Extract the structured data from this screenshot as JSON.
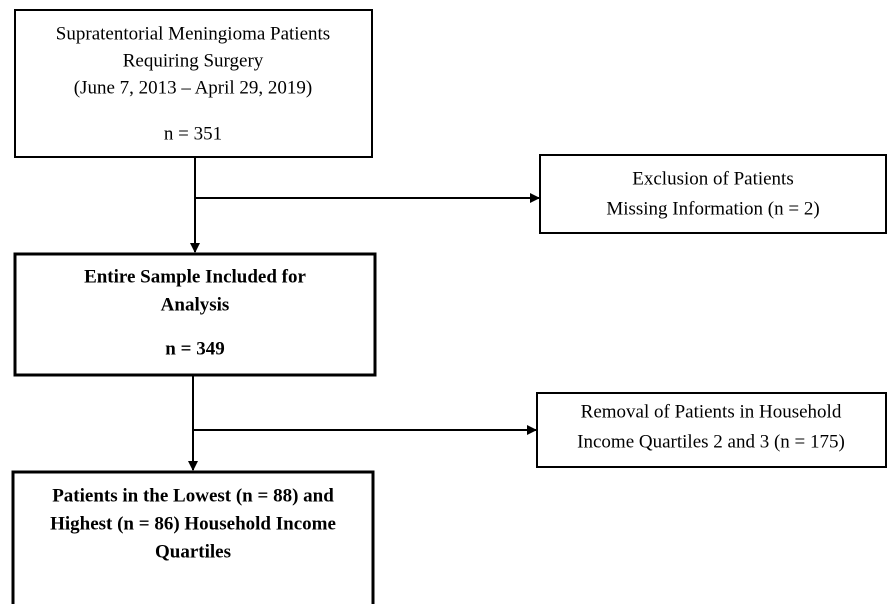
{
  "nodes": [
    {
      "lines": [
        "Supratentorial Meningioma Patients",
        "Requiring Surgery",
        "(June 7, 2013 – April 29, 2019)",
        "n = 351"
      ]
    },
    {
      "lines": [
        "Exclusion of Patients",
        "Missing Information (n = 2)"
      ]
    },
    {
      "lines": [
        "Entire Sample Included for",
        "Analysis",
        "n = 349"
      ]
    },
    {
      "lines": [
        "Removal of Patients in Household",
        "Income Quartiles 2 and 3 (n = 175)"
      ]
    },
    {
      "lines": [
        "Patients in the Lowest (n = 88) and",
        "Highest (n = 86) Household Income",
        "Quartiles"
      ]
    }
  ]
}
